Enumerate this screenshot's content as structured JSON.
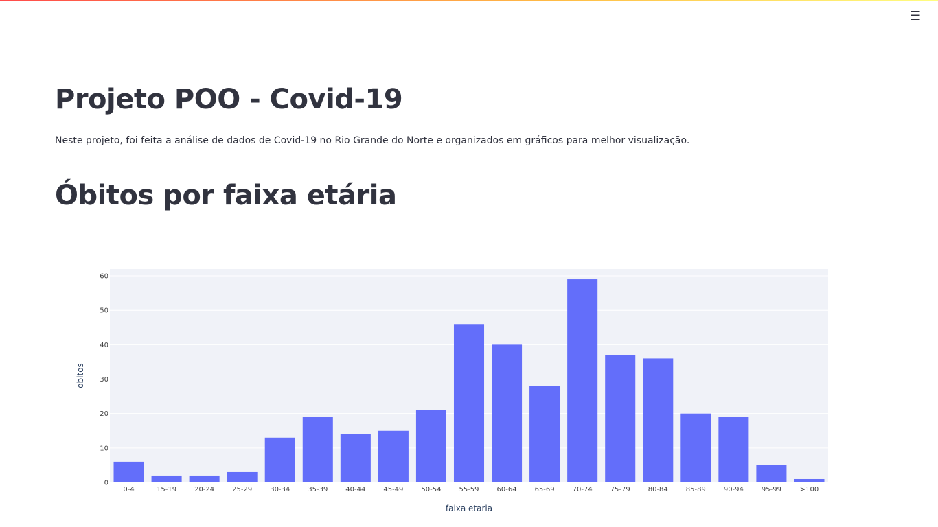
{
  "header": {
    "menu_icon": "hamburger-icon",
    "menu_glyph": "☰"
  },
  "page": {
    "title": "Projeto POO - Covid-19",
    "description": "Neste projeto, foi feita a análise de dados de Covid-19 no Rio Grande do Norte e organizados em gráficos para melhor visualização.",
    "section_title": "Óbitos por faixa etária"
  },
  "colors": {
    "bar": "#636efa",
    "plot_bg": "#e5ecf6",
    "accent_gradient": [
      "#ff4b4b",
      "#ffbd45",
      "#fffd80"
    ]
  },
  "chart_data": {
    "type": "bar",
    "categories": [
      "0-4",
      "15-19",
      "20-24",
      "25-29",
      "30-34",
      "35-39",
      "40-44",
      "45-49",
      "50-54",
      "55-59",
      "60-64",
      "65-69",
      "70-74",
      "75-79",
      "80-84",
      "85-89",
      "90-94",
      "95-99",
      ">100"
    ],
    "values": [
      6,
      2,
      2,
      3,
      13,
      19,
      14,
      15,
      21,
      46,
      40,
      28,
      59,
      37,
      36,
      20,
      19,
      5,
      1
    ],
    "xlabel": "faixa etaria",
    "ylabel": "obitos",
    "ylim": [
      0,
      62
    ],
    "yticks": [
      0,
      10,
      20,
      30,
      40,
      50,
      60
    ],
    "grid": true
  }
}
